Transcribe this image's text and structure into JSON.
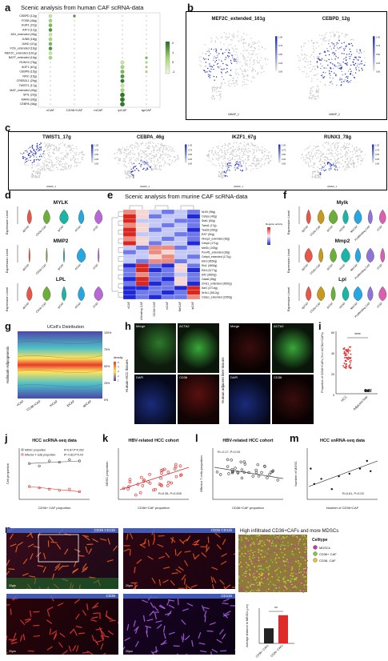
{
  "labels": {
    "a": "a",
    "b": "b",
    "c": "c",
    "d": "d",
    "e": "e",
    "f": "f",
    "g": "g",
    "h": "h",
    "i": "i",
    "j": "j",
    "k": "k",
    "l": "l",
    "m": "m",
    "n": "n"
  },
  "panel_a": {
    "title": "Scenic analysis from human CAF scRNA-data",
    "rows": [
      "CEBPD (12g)",
      "FOSB (46g)",
      "EGR1 (22g)",
      "ATF3 (12g)",
      "JUN_extended (45g)",
      "JUNB (18g)",
      "JUND (47g)",
      "FOS_extended (16g)",
      "MEF2C_extended (161g)",
      "BATF_extended (16g)",
      "RUNX3 (78g)",
      "IKZF1 (67g)",
      "CEBPB (15g)",
      "NFIC (15g)",
      "CREB3L1 (29g)",
      "TWIST1 (17g)",
      "MAF_extended (49g)",
      "SPI1 (29g)",
      "MAFB (28g)",
      "CEBPA (46g)"
    ],
    "cols": [
      "vCAF",
      "CD36+CAF",
      "mCAF",
      "ipCAF",
      "apCAF"
    ],
    "legend_ticks": [
      "2",
      "1",
      "0",
      "-1"
    ]
  },
  "panel_b": {
    "maps": [
      {
        "title": "MEF2C_extended_161g",
        "ticks": [
          "1.00",
          "0.75",
          "0.50",
          "0.25",
          "0.00"
        ]
      },
      {
        "title": "CEBPD_12g",
        "ticks": [
          "1.00",
          "0.75",
          "0.50",
          "0.25",
          "0.00"
        ]
      }
    ],
    "xlab": "UMAP_1",
    "ylab": "UMAP_2"
  },
  "panel_c": {
    "maps": [
      {
        "title": "TWIST1_17g",
        "ticks": [
          "1.00",
          "0.75",
          "0.50",
          "0.25",
          "0.00"
        ]
      },
      {
        "title": "CEBPA_46g",
        "ticks": [
          "1.00",
          "0.75",
          "0.50",
          "0.25",
          "0.00"
        ]
      },
      {
        "title": "IKZF1_67g",
        "ticks": [
          "1.00",
          "0.75",
          "0.50",
          "0.25",
          "0.00"
        ]
      },
      {
        "title": "RUNX3_78g",
        "ticks": [
          "1.00",
          "0.75",
          "0.50",
          "0.25",
          "0.00"
        ]
      }
    ],
    "xlab": "UMAP_1",
    "ylab": "UMAP_2"
  },
  "panel_d": {
    "genes": [
      "MYLK",
      "MMP2",
      "LPL"
    ],
    "ylabel": "Expression Level",
    "cats": [
      "apCAF",
      "CD36+CAF",
      "ipCAF",
      "mCAF",
      "vCAF"
    ],
    "colors": [
      "#e8564a",
      "#6cae3a",
      "#1ab5a5",
      "#27a6e0",
      "#b868d6"
    ]
  },
  "panel_e": {
    "title": "Scenic analysis from murine CAF scRNA-data",
    "rows": [
      "Nr2f1 (98g)",
      "Cebpa (46g)",
      "Stat1 (60g)",
      "Twist1 (17g)",
      "Tead3 (266g)",
      "E2f7 (50g)",
      "Hivep2_extended (36g)",
      "Cebpb (171g)",
      "Mef2c (105g)",
      "Pou4f1_extended (28g)",
      "Cebpd_extended (171g)",
      "Elk3 (3650g)",
      "Ets1 (4600g)",
      "Elk3 (3177g)",
      "Elf2 (3650g)",
      "Gata6 (38g)",
      "Zmiz1_extended (3652g)",
      "Ikzf1 (4714g)",
      "Nr3c1 (3612g)",
      "Cebpz_extended (2260g)"
    ],
    "cols": [
      "vCAF",
      "Proliferating CAF",
      "CD36+CAF",
      "mCAF",
      "MeCAF",
      "ipCAF"
    ],
    "legend_title": "Regulon activity"
  },
  "panel_f": {
    "genes": [
      "Mylk",
      "Mmp2",
      "Lpl"
    ],
    "ylabel": "Expression Level",
    "cats": [
      "apCAF",
      "CD36+CAF",
      "ipCAF",
      "mCAF",
      "MeCAF",
      "Proliferating CAF",
      "vCAF"
    ],
    "colors": [
      "#e8564a",
      "#c79a1f",
      "#6cae3a",
      "#1ab5a5",
      "#27a6e0",
      "#8d74d6",
      "#d95fb0"
    ]
  },
  "panel_g": {
    "title": "UCell's Distribution",
    "ylabel": "Hallmark-Adipogenesis",
    "cats": [
      "vCAF",
      "CD36+CAF",
      "mCAF",
      "ipCAF",
      "apCAF"
    ],
    "pct": [
      "100%",
      "75%",
      "50%",
      "25%",
      "0%"
    ],
    "legend_title": "density",
    "legend_ticks": [
      "5",
      "4",
      "3",
      "2",
      "1"
    ]
  },
  "panel_h": {
    "left_side": "Human HCC tissues",
    "right_side": "Human adjacent liver tissues",
    "tiles": [
      "Merge",
      "ACTA2",
      "DAPI",
      "CD36"
    ]
  },
  "panel_i": {
    "ylabel": "Proportion of CD36+CAFs (% in ACTA2+CAFs)",
    "cats": [
      "HCC",
      "Adjacent liver"
    ],
    "stars": "****",
    "yticks": [
      "60",
      "40",
      "20",
      "0"
    ]
  },
  "panel_j": {
    "title": "HCC scRNA-seq data",
    "legend": [
      "MDSC proportion",
      "Effector T cells proportion"
    ],
    "stats": [
      "R=0.87,P=0.002",
      "R=-0.82,P=0.04"
    ],
    "xlabel": "CD36+ CAF proportion",
    "ylabel": "Cell proportion"
  },
  "panel_k": {
    "title": "HBV-related HCC cohort",
    "stat": "R=0.35, P=0.005",
    "xlabel": "CD36+CAF proportion",
    "ylabel": "MDSC proportion"
  },
  "panel_l": {
    "title": "HBV-related HCC cohort",
    "stat": "R=-0.17, P=0.03",
    "xlabel": "CD36+CAF proportion",
    "ylabel": "Effector T cells proportion"
  },
  "panel_m": {
    "title": "HCC snRNA-seq data",
    "stat": "R=0.61, P=0.03",
    "xlabel": "Number of CD36+CAF",
    "ylabel": "Number of MDSC"
  },
  "panel_n": {
    "tile_labels": [
      "CD36 CD11b",
      "CD36 CD11b",
      "CD36",
      "CD11b"
    ],
    "right_title": "High infiltrated CD36+CAFs and more MDSCs",
    "legend_title": "Celltype",
    "legend": [
      "MDSCs",
      "CD36+ CAF",
      "CD36- CAF"
    ],
    "bar_ylabel": "Average distance to MDSCs (μm)",
    "bar_cats": [
      "CD36+ CAFs",
      "CD36- CAFs"
    ],
    "bar_stars": "**",
    "scale": "20μm"
  },
  "chart_data": [
    {
      "type": "scatter",
      "title": "HCC scRNA-seq data",
      "xlabel": "CD36+ CAF proportion",
      "ylabel": "Cell proportion",
      "series": [
        {
          "name": "MDSC proportion",
          "x": [
            0.3,
            0.4,
            0.5,
            0.6,
            0.7,
            0.8
          ],
          "y": [
            0.28,
            0.26,
            0.3,
            0.29,
            0.31,
            0.3
          ]
        },
        {
          "name": "Effector T cells proportion",
          "x": [
            0.3,
            0.4,
            0.5,
            0.6,
            0.7,
            0.8
          ],
          "y": [
            0.1,
            0.09,
            0.08,
            0.07,
            0.08,
            0.06
          ]
        }
      ]
    },
    {
      "type": "bar",
      "categories": [
        "CD36+ CAFs",
        "CD36- CAFs"
      ],
      "values": [
        15,
        28
      ],
      "ylabel": "Average distance to MDSCs (μm)"
    }
  ]
}
